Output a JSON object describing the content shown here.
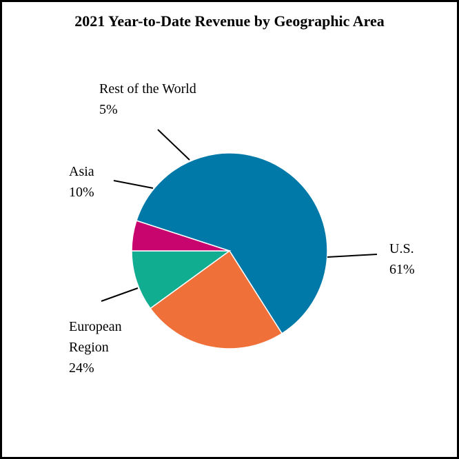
{
  "chart_data": {
    "type": "pie",
    "title": "2021 Year-to-Date Revenue by Geographic Area",
    "slices": [
      {
        "name": "U.S.",
        "value": 61,
        "label_lines": [
          "U.S.",
          "61%"
        ],
        "color": "#0079A8"
      },
      {
        "name": "European Region",
        "value": 24,
        "label_lines": [
          "European",
          "Region",
          "24%"
        ],
        "color": "#F0703A"
      },
      {
        "name": "Asia",
        "value": 10,
        "label_lines": [
          "Asia",
          "10%"
        ],
        "color": "#10AD91"
      },
      {
        "name": "Rest of the World",
        "value": 5,
        "label_lines": [
          "Rest of the World",
          "5%"
        ],
        "color": "#C8056E"
      }
    ],
    "legend": "none",
    "grid": false
  }
}
